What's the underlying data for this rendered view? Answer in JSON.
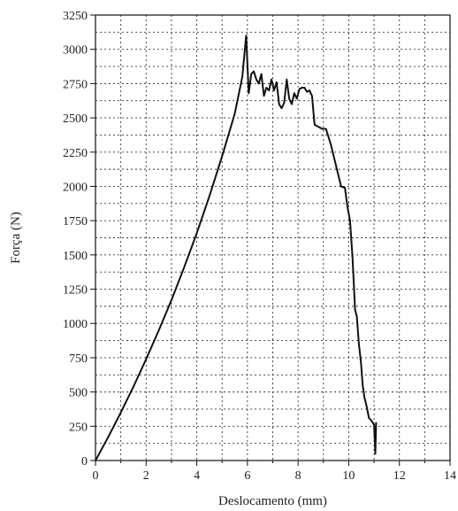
{
  "chart_data": {
    "type": "line",
    "title": "",
    "xlabel": "Deslocamento (mm)",
    "ylabel": "Força (N)",
    "xlim": [
      0,
      14
    ],
    "ylim": [
      0,
      3250
    ],
    "x_ticks": [
      "0",
      "2",
      "4",
      "6",
      "8",
      "10",
      "12",
      "14"
    ],
    "y_ticks": [
      "0",
      "250",
      "500",
      "750",
      "1000",
      "1250",
      "1500",
      "1750",
      "2000",
      "2250",
      "2500",
      "2750",
      "3000",
      "3250"
    ],
    "grid": true,
    "grid_style": "dotted",
    "legend": "none",
    "series": [
      {
        "color": "#111111",
        "x": [
          0,
          0.5,
          1,
          1.5,
          2,
          2.5,
          3,
          3.5,
          4,
          4.5,
          5,
          5.5,
          5.8,
          5.95,
          6.05,
          6.15,
          6.25,
          6.35,
          6.45,
          6.55,
          6.65,
          6.75,
          6.85,
          6.95,
          7.05,
          7.15,
          7.25,
          7.35,
          7.45,
          7.55,
          7.65,
          7.75,
          7.85,
          7.95,
          8.05,
          8.15,
          8.25,
          8.35,
          8.45,
          8.55,
          8.65,
          8.75,
          8.85,
          8.95,
          9.1,
          9.3,
          9.5,
          9.7,
          9.85,
          9.95,
          10.05,
          10.15,
          10.25,
          10.32,
          10.4,
          10.48,
          10.55,
          10.62,
          10.7,
          10.8,
          10.9,
          11.0,
          11.05,
          11.08
        ],
        "y": [
          0,
          170,
          350,
          540,
          740,
          950,
          1170,
          1410,
          1660,
          1930,
          2220,
          2530,
          2800,
          3100,
          2680,
          2820,
          2840,
          2780,
          2750,
          2820,
          2660,
          2720,
          2700,
          2780,
          2700,
          2760,
          2600,
          2570,
          2610,
          2780,
          2640,
          2600,
          2680,
          2640,
          2710,
          2720,
          2720,
          2690,
          2700,
          2660,
          2450,
          2440,
          2430,
          2420,
          2420,
          2300,
          2150,
          2000,
          1990,
          1850,
          1750,
          1480,
          1100,
          1050,
          850,
          720,
          550,
          460,
          400,
          310,
          290,
          260,
          50,
          280
        ]
      }
    ]
  }
}
